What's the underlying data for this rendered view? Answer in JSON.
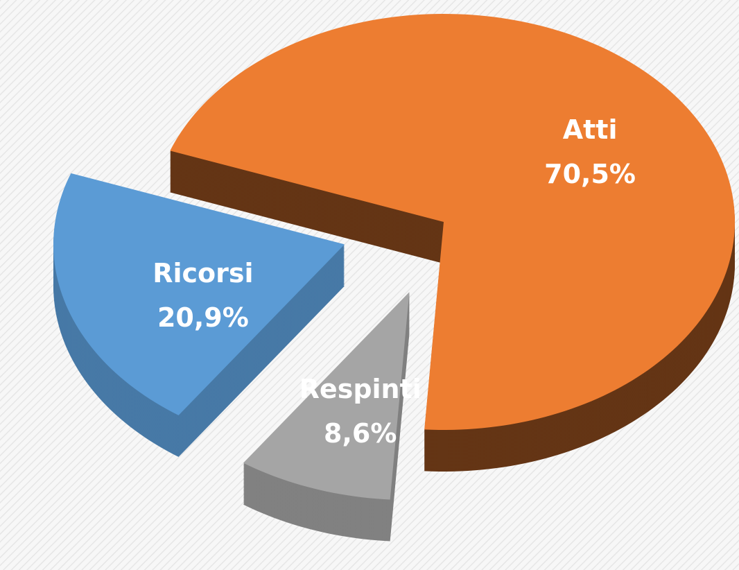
{
  "chart_data": {
    "type": "pie",
    "categories": [
      "Atti",
      "Respinti",
      "Ricorsi"
    ],
    "values": [
      70.5,
      8.6,
      20.9
    ],
    "value_labels": [
      "70,5%",
      "8,6%",
      "20,9%"
    ],
    "colors": [
      "#ed7d31",
      "#a5a5a5",
      "#5b9bd5"
    ]
  }
}
